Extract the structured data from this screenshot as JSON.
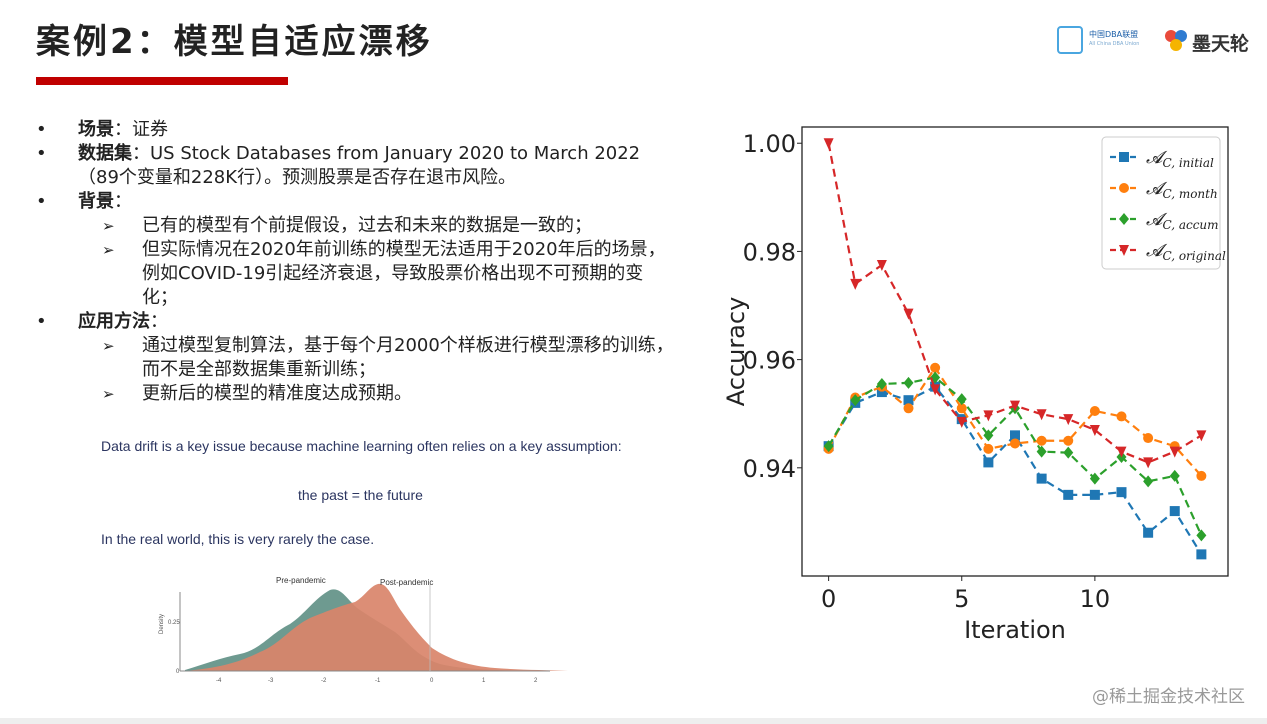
{
  "header": {
    "title": "案例2：模型自适应漂移",
    "logo1_line1": "中国DBA联盟",
    "logo1_line2": "All China DBA Union",
    "logo2_text": "墨天轮"
  },
  "bullets": [
    {
      "label": "场景",
      "text": "：证券"
    },
    {
      "label": "数据集",
      "text": "：US Stock Databases from January 2020 to March 2022（89个变量和228K行）。预测股票是否存在退市风险。"
    },
    {
      "label": "背景",
      "text": "：",
      "subs": [
        "已有的模型有个前提假设，过去和未来的数据是一致的；",
        "但实际情况在2020年前训练的模型无法适用于2020年后的场景，例如COVID-19引起经济衰退，导致股票价格出现不可预期的变化；"
      ]
    },
    {
      "label": "应用方法",
      "text": "：",
      "subs": [
        "通过模型复制算法，基于每个月2000个样板进行模型漂移的训练，而不是全部数据集重新训练；",
        "更新后的模型的精准度达成预期。"
      ]
    }
  ],
  "notes": {
    "line1": "Data drift is a key issue because machine learning often relies on a key assumption:",
    "line2": "the past = the future",
    "line3": "In the real world, this is very rarely the case."
  },
  "kde": {
    "label_pre": "Pre-pandemic",
    "label_post": "Post-pandemic",
    "ylabel": "Density",
    "ytick": "0.25",
    "ytick0": "0",
    "xticks": [
      "-4",
      "-3",
      "-2",
      "-1",
      "0",
      "1",
      "2"
    ],
    "colors": {
      "pre": "#5e8f84",
      "post": "#d9846a"
    }
  },
  "chart_data": {
    "type": "line",
    "xlabel": "Iteration",
    "ylabel": "Accuracy",
    "xlim": [
      -1,
      15
    ],
    "ylim": [
      0.92,
      1.003
    ],
    "xticks": [
      0,
      5,
      10
    ],
    "yticks": [
      0.94,
      0.96,
      0.98,
      1.0
    ],
    "ytick_labels": [
      "0.94",
      "0.96",
      "0.98",
      "1.00"
    ],
    "grid": false,
    "legend_position": "top-right",
    "x": [
      0,
      1,
      2,
      3,
      4,
      5,
      6,
      7,
      8,
      9,
      10,
      11,
      12,
      13,
      14
    ],
    "series": [
      {
        "name": "A_C, initial",
        "legend_main": "𝓐",
        "legend_sub": "C, initial",
        "color": "#1f77b4",
        "marker": "square",
        "values": [
          0.944,
          0.952,
          0.954,
          0.9525,
          0.955,
          0.949,
          0.941,
          0.946,
          0.938,
          0.935,
          0.935,
          0.9355,
          0.928,
          0.932,
          0.924
        ]
      },
      {
        "name": "A_C, month",
        "legend_main": "𝓐",
        "legend_sub": "C, month",
        "color": "#ff7f0e",
        "marker": "circle",
        "values": [
          0.9435,
          0.953,
          0.955,
          0.951,
          0.9585,
          0.951,
          0.9435,
          0.9445,
          0.945,
          0.945,
          0.9505,
          0.9495,
          0.9455,
          0.944,
          0.9385
        ]
      },
      {
        "name": "A_C, accum",
        "legend_main": "𝓐",
        "legend_sub": "C, accum",
        "color": "#2ca02c",
        "marker": "diamond",
        "values": [
          0.944,
          0.9525,
          0.9555,
          0.9557,
          0.9567,
          0.9527,
          0.946,
          0.951,
          0.943,
          0.9428,
          0.938,
          0.942,
          0.9375,
          0.9385,
          0.9275
        ]
      },
      {
        "name": "A_C, original",
        "legend_main": "𝓐",
        "legend_sub": "C, original",
        "color": "#d62728",
        "marker": "triangle-down",
        "values": [
          1.0,
          0.974,
          0.9775,
          0.9685,
          0.9545,
          0.9485,
          0.9497,
          0.9515,
          0.9499,
          0.949,
          0.947,
          0.943,
          0.941,
          0.943,
          0.946
        ]
      }
    ]
  },
  "watermark": "@稀土掘金技术社区"
}
